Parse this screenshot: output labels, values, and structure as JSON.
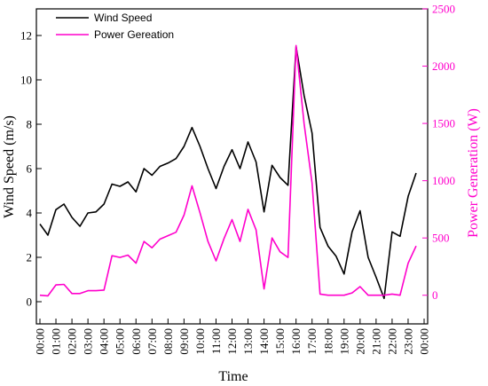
{
  "chart_data": {
    "type": "line",
    "xlabel": "Time",
    "ylabel_left": "Wind Speed (m/s)",
    "ylabel_right": "Power Generation (W)",
    "y_left_lim": [
      -1,
      13.2
    ],
    "y_left_ticks": [
      0,
      2,
      4,
      6,
      8,
      10,
      12
    ],
    "y_right_lim": [
      -250,
      2500
    ],
    "y_right_ticks": [
      0,
      500,
      1000,
      1500,
      2000,
      2500
    ],
    "x_tick_labels": [
      "00:00",
      "01:00",
      "02:00",
      "03:00",
      "04:00",
      "05:00",
      "06:00",
      "07:00",
      "08:00",
      "09:00",
      "10:00",
      "11:00",
      "12:00",
      "13:00",
      "14:00",
      "15:00",
      "16:00",
      "17:00",
      "18:00",
      "19:00",
      "20:00",
      "21:00",
      "22:00",
      "23:00",
      "00:00"
    ],
    "legend_position": "top-left",
    "x": [
      0,
      0.5,
      1,
      1.5,
      2,
      2.5,
      3,
      3.5,
      4,
      4.5,
      5,
      5.5,
      6,
      6.5,
      7,
      7.5,
      8,
      8.5,
      9,
      9.5,
      10,
      10.5,
      11,
      11.5,
      12,
      12.5,
      13,
      13.5,
      14,
      14.5,
      15,
      15.5,
      16,
      16.5,
      17,
      17.5,
      18,
      18.5,
      19,
      19.5,
      20,
      20.5,
      21,
      21.5,
      22,
      22.5,
      23,
      23.5
    ],
    "series": [
      {
        "name": "Wind Speed",
        "axis": "left",
        "color": "#000000",
        "values": [
          3.5,
          3.0,
          4.15,
          4.4,
          3.8,
          3.4,
          4.0,
          4.05,
          4.4,
          5.3,
          5.2,
          5.4,
          4.95,
          6.0,
          5.7,
          6.1,
          6.25,
          6.45,
          7.0,
          7.85,
          7.0,
          6.0,
          5.1,
          6.1,
          6.85,
          6.0,
          7.2,
          6.3,
          4.05,
          6.15,
          5.6,
          5.25,
          11.5,
          9.3,
          7.6,
          3.35,
          2.5,
          2.05,
          1.25,
          3.15,
          4.1,
          2.0,
          1.1,
          0.15,
          3.15,
          2.95,
          4.75,
          5.8
        ]
      },
      {
        "name": "Power Gereation",
        "axis": "right",
        "color": "#ff00cc",
        "values": [
          0,
          -5,
          90,
          95,
          15,
          15,
          40,
          40,
          45,
          345,
          330,
          350,
          280,
          470,
          415,
          490,
          520,
          550,
          700,
          955,
          720,
          470,
          300,
          495,
          660,
          470,
          750,
          570,
          55,
          500,
          380,
          330,
          2180,
          1500,
          980,
          10,
          0,
          0,
          0,
          20,
          75,
          0,
          0,
          0,
          10,
          0,
          280,
          430
        ]
      }
    ]
  }
}
